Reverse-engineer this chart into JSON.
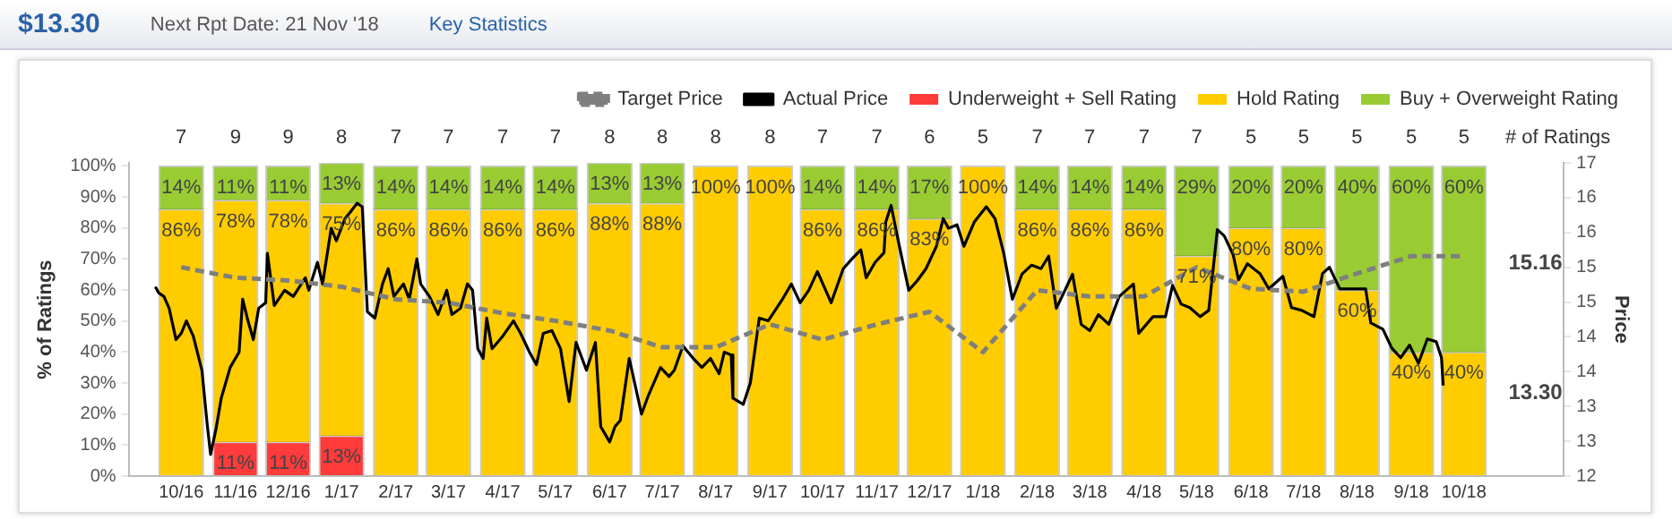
{
  "chart_data": {
    "type": "bar",
    "title": "$13.30",
    "subtitle": "Next Rpt Date: 21 Nov '18",
    "ylabel": "% of Ratings",
    "y2label": "Price",
    "stacked": true,
    "legend": "top right",
    "grid": false,
    "marker": "none",
    "x": [
      "2016-10-16",
      "2016-11-16",
      "2016-12-16",
      "2017-01-16",
      "2017-02-15",
      "2017-03-16",
      "2017-04-16",
      "2017-05-16",
      "2017-06-16",
      "2017-07-16",
      "2017-08-16",
      "2017-09-16",
      "2017-10-16",
      "2017-11-16",
      "2017-12-16",
      "2018-01-16",
      "2018-02-15",
      "2018-03-16",
      "2018-04-16",
      "2018-05-16",
      "2018-06-16",
      "2018-07-16",
      "2018-08-16",
      "2018-09-16",
      "2018-10-16"
    ],
    "xlim": [
      "2016-09-16",
      "2018-12-12"
    ],
    "xticks": [
      {
        "value": "2016-10-16",
        "label": "10/16"
      },
      {
        "value": "2016-11-16",
        "label": "11/16"
      },
      {
        "value": "2016-12-16",
        "label": "12/16"
      },
      {
        "value": "2017-01-16",
        "label": "1/17"
      },
      {
        "value": "2017-02-15",
        "label": "2/17"
      },
      {
        "value": "2017-03-16",
        "label": "3/17"
      },
      {
        "value": "2017-04-16",
        "label": "4/17"
      },
      {
        "value": "2017-05-16",
        "label": "5/17"
      },
      {
        "value": "2017-06-16",
        "label": "6/17"
      },
      {
        "value": "2017-07-16",
        "label": "7/17"
      },
      {
        "value": "2017-08-16",
        "label": "8/17"
      },
      {
        "value": "2017-09-16",
        "label": "9/17"
      },
      {
        "value": "2017-10-16",
        "label": "10/17"
      },
      {
        "value": "2017-11-16",
        "label": "11/17"
      },
      {
        "value": "2017-12-16",
        "label": "12/17"
      },
      {
        "value": "2018-01-16",
        "label": "1/18"
      },
      {
        "value": "2018-02-15",
        "label": "2/18"
      },
      {
        "value": "2018-03-16",
        "label": "3/18"
      },
      {
        "value": "2018-04-16",
        "label": "4/18"
      },
      {
        "value": "2018-05-16",
        "label": "5/18"
      },
      {
        "value": "2018-06-16",
        "label": "6/18"
      },
      {
        "value": "2018-07-16",
        "label": "7/18"
      },
      {
        "value": "2018-08-16",
        "label": "8/18"
      },
      {
        "value": "2018-09-16",
        "label": "9/18"
      },
      {
        "value": "2018-10-16",
        "label": "10/18"
      }
    ],
    "ylim": [
      0,
      101
    ],
    "yticks": [
      {
        "value": 0,
        "label": "0%"
      },
      {
        "value": 10,
        "label": "10%"
      },
      {
        "value": 20,
        "label": "20%"
      },
      {
        "value": 30,
        "label": "30%"
      },
      {
        "value": 40,
        "label": "40%"
      },
      {
        "value": 50,
        "label": "50%"
      },
      {
        "value": 60,
        "label": "60%"
      },
      {
        "value": 70,
        "label": "70%"
      },
      {
        "value": 80,
        "label": "80%"
      },
      {
        "value": 90,
        "label": "90%"
      },
      {
        "value": 100,
        "label": "100%"
      }
    ],
    "y2lim": [
      12,
      16.5
    ],
    "y2ticks": [
      {
        "value": 12,
        "label": "12"
      },
      {
        "value": 12.5,
        "label": "13"
      },
      {
        "value": 13,
        "label": "13"
      },
      {
        "value": 13.5,
        "label": "14"
      },
      {
        "value": 14,
        "label": "14"
      },
      {
        "value": 14.5,
        "label": "15"
      },
      {
        "value": 15,
        "label": "15"
      },
      {
        "value": 15.5,
        "label": "16"
      },
      {
        "value": 16,
        "label": "16"
      },
      {
        "value": 16.5,
        "label": "17"
      }
    ],
    "series": [
      {
        "name": "Underweight + Sell Rating",
        "color": "#ff3b3b",
        "values": [
          0,
          11,
          11,
          13,
          0,
          0,
          0,
          0,
          0,
          0,
          0,
          0,
          0,
          0,
          0,
          0,
          0,
          0,
          0,
          0,
          0,
          0,
          0,
          0,
          0
        ],
        "value_labels": [
          null,
          "11%",
          "11%",
          "13%",
          null,
          null,
          null,
          null,
          null,
          null,
          null,
          null,
          null,
          null,
          null,
          null,
          null,
          null,
          null,
          null,
          null,
          null,
          null,
          null,
          null
        ]
      },
      {
        "name": "Hold Rating",
        "color": "#ffcc00",
        "values": [
          86,
          78,
          78,
          75,
          86,
          86,
          86,
          86,
          88,
          88,
          100,
          100,
          86,
          86,
          83,
          100,
          86,
          86,
          86,
          71,
          80,
          80,
          60,
          40,
          40
        ],
        "value_labels": [
          "86%",
          "78%",
          "78%",
          "75%",
          "86%",
          "86%",
          "86%",
          "86%",
          "88%",
          "88%",
          "100%",
          "100%",
          "86%",
          "86%",
          "83%",
          "100%",
          "86%",
          "86%",
          "86%",
          "71%",
          "80%",
          "80%",
          "60%",
          "40%",
          "40%"
        ]
      },
      {
        "name": "Buy + Overweight Rating",
        "color": "#99cc33",
        "values": [
          14,
          11,
          11,
          13,
          14,
          14,
          14,
          14,
          13,
          13,
          0,
          0,
          14,
          14,
          17,
          0,
          14,
          14,
          14,
          29,
          20,
          20,
          40,
          60,
          60
        ],
        "value_labels": [
          "14%",
          "11%",
          "11%",
          "13%",
          "14%",
          "14%",
          "14%",
          "14%",
          "13%",
          "13%",
          null,
          null,
          "14%",
          "14%",
          "17%",
          null,
          "14%",
          "14%",
          "14%",
          "29%",
          "20%",
          "20%",
          "40%",
          "60%",
          "60%"
        ]
      },
      {
        "name": "Target Price",
        "type": "line",
        "axis": "y2",
        "color": "#7f7f7f",
        "line_style": "dashed",
        "x": [
          "2016-10-16",
          "2016-11-16",
          "2016-12-16",
          "2017-01-16",
          "2017-02-15",
          "2017-03-16",
          "2017-04-16",
          "2017-05-16",
          "2017-06-16",
          "2017-07-16",
          "2017-08-16",
          "2017-09-16",
          "2017-10-16",
          "2017-11-16",
          "2017-12-16",
          "2018-01-16",
          "2018-02-15",
          "2018-03-16",
          "2018-04-16",
          "2018-05-16",
          "2018-06-16",
          "2018-07-16",
          "2018-08-16",
          "2018-09-16",
          "2018-10-16"
        ],
        "values": [
          15.0,
          14.85,
          14.81,
          14.72,
          14.54,
          14.49,
          14.34,
          14.23,
          14.09,
          13.85,
          13.85,
          14.18,
          13.96,
          14.18,
          14.36,
          13.78,
          14.67,
          14.58,
          14.58,
          15.0,
          14.69,
          14.65,
          14.91,
          15.16,
          15.16
        ]
      },
      {
        "name": "Actual Price",
        "type": "line",
        "axis": "y2",
        "color": "#000000",
        "line_style": "solid",
        "x": [
          "2016-10-01",
          "2016-10-03",
          "2016-10-06",
          "2016-10-09",
          "2016-10-13",
          "2016-10-16",
          "2016-10-19",
          "2016-10-23",
          "2016-10-28",
          "2016-10-31",
          "2016-11-02",
          "2016-11-05",
          "2016-11-08",
          "2016-11-13",
          "2016-11-18",
          "2016-11-20",
          "2016-11-23",
          "2016-11-26",
          "2016-11-29",
          "2016-12-03",
          "2016-12-04",
          "2016-12-08",
          "2016-12-14",
          "2016-12-19",
          "2016-12-26",
          "2016-12-28",
          "2017-01-02",
          "2017-01-05",
          "2017-01-10",
          "2017-01-13",
          "2017-01-18",
          "2017-01-21",
          "2017-01-25",
          "2017-01-28",
          "2017-01-31",
          "2017-02-04",
          "2017-02-08",
          "2017-02-11",
          "2017-02-14",
          "2017-02-19",
          "2017-02-22",
          "2017-02-26",
          "2017-02-28",
          "2017-03-05",
          "2017-03-10",
          "2017-03-15",
          "2017-03-18",
          "2017-03-23",
          "2017-03-27",
          "2017-03-30",
          "2017-04-02",
          "2017-04-05",
          "2017-04-07",
          "2017-04-10",
          "2017-04-16",
          "2017-04-22",
          "2017-04-26",
          "2017-05-01",
          "2017-05-05",
          "2017-05-09",
          "2017-05-14",
          "2017-05-19",
          "2017-05-24",
          "2017-05-28",
          "2017-06-03",
          "2017-06-08",
          "2017-06-11",
          "2017-06-16",
          "2017-06-19",
          "2017-06-22",
          "2017-06-27",
          "2017-07-04",
          "2017-07-08",
          "2017-07-15",
          "2017-07-20",
          "2017-07-23",
          "2017-07-28",
          "2017-08-03",
          "2017-08-08",
          "2017-08-13",
          "2017-08-18",
          "2017-08-21",
          "2017-08-25",
          "2017-08-26",
          "2017-09-01",
          "2017-09-05",
          "2017-09-10",
          "2017-09-15",
          "2017-09-23",
          "2017-09-28",
          "2017-10-03",
          "2017-10-08",
          "2017-10-13",
          "2017-10-21",
          "2017-10-28",
          "2017-11-02",
          "2017-11-07",
          "2017-11-10",
          "2017-11-15",
          "2017-11-20",
          "2017-11-21",
          "2017-11-24",
          "2017-11-28",
          "2017-12-04",
          "2017-12-09",
          "2017-12-14",
          "2017-12-20",
          "2017-12-24",
          "2017-12-27",
          "2018-01-01",
          "2018-01-05",
          "2018-01-11",
          "2018-01-18",
          "2018-01-23",
          "2018-01-28",
          "2018-02-02",
          "2018-02-07",
          "2018-02-12",
          "2018-02-17",
          "2018-02-21",
          "2018-02-25",
          "2018-02-28",
          "2018-03-06",
          "2018-03-11",
          "2018-03-16",
          "2018-03-21",
          "2018-03-27",
          "2018-04-02",
          "2018-04-10",
          "2018-04-13",
          "2018-04-21",
          "2018-04-28",
          "2018-05-02",
          "2018-05-07",
          "2018-05-12",
          "2018-05-18",
          "2018-05-23",
          "2018-05-28",
          "2018-06-01",
          "2018-06-06",
          "2018-06-09",
          "2018-06-14",
          "2018-06-21",
          "2018-06-26",
          "2018-07-04",
          "2018-07-09",
          "2018-07-15",
          "2018-07-22",
          "2018-07-27",
          "2018-07-31",
          "2018-08-06",
          "2018-08-13",
          "2018-08-21",
          "2018-08-24",
          "2018-08-31",
          "2018-09-05",
          "2018-09-10",
          "2018-09-15",
          "2018-09-20",
          "2018-09-25",
          "2018-09-30",
          "2018-10-03",
          "2018-10-04"
        ],
        "values": [
          14.72,
          14.63,
          14.58,
          14.41,
          13.96,
          14.05,
          14.23,
          14.01,
          13.52,
          12.76,
          12.31,
          12.67,
          13.12,
          13.56,
          13.78,
          14.54,
          14.23,
          13.96,
          14.41,
          14.49,
          15.2,
          14.45,
          14.67,
          14.58,
          14.85,
          14.67,
          15.07,
          14.76,
          15.56,
          15.38,
          15.7,
          15.79,
          15.92,
          15.87,
          14.36,
          14.27,
          14.76,
          14.98,
          14.58,
          14.76,
          14.54,
          15.12,
          14.76,
          14.58,
          14.32,
          14.67,
          14.32,
          14.41,
          14.76,
          14.67,
          13.83,
          13.69,
          14.27,
          13.83,
          14.01,
          14.23,
          14.05,
          13.78,
          13.6,
          14.05,
          14.09,
          13.83,
          13.07,
          13.92,
          13.52,
          13.92,
          12.71,
          12.49,
          12.71,
          12.8,
          13.69,
          12.89,
          13.16,
          13.56,
          13.43,
          13.52,
          13.87,
          13.69,
          13.56,
          13.69,
          13.47,
          13.78,
          13.74,
          13.12,
          13.03,
          13.34,
          14.27,
          14.23,
          14.54,
          14.76,
          14.49,
          14.67,
          14.94,
          14.49,
          14.98,
          15.12,
          15.25,
          14.85,
          15.07,
          15.21,
          15.65,
          15.89,
          15.38,
          14.67,
          14.81,
          14.98,
          15.3,
          15.7,
          15.56,
          15.61,
          15.3,
          15.65,
          15.87,
          15.7,
          15.21,
          14.54,
          14.9,
          15.03,
          14.98,
          15.16,
          14.41,
          14.58,
          14.9,
          14.18,
          14.09,
          14.32,
          14.18,
          14.58,
          14.76,
          14.05,
          14.29,
          14.29,
          14.74,
          14.47,
          14.42,
          14.29,
          14.38,
          15.54,
          15.45,
          15.18,
          14.82,
          15.05,
          14.91,
          14.69,
          14.87,
          14.42,
          14.38,
          14.29,
          14.91,
          15.0,
          14.69,
          14.69,
          14.69,
          14.2,
          14.11,
          13.84,
          13.7,
          13.88,
          13.62,
          13.97,
          13.93,
          13.7,
          13.3
        ]
      }
    ],
    "annotations": [
      "Key Statistics",
      "# of Ratings",
      "7",
      "9",
      "9",
      "8",
      "7",
      "7",
      "7",
      "7",
      "8",
      "8",
      "8",
      "8",
      "7",
      "7",
      "6",
      "5",
      "7",
      "7",
      "7",
      "7",
      "5",
      "5",
      "5",
      "5",
      "5",
      "15.16",
      "13.30"
    ]
  }
}
